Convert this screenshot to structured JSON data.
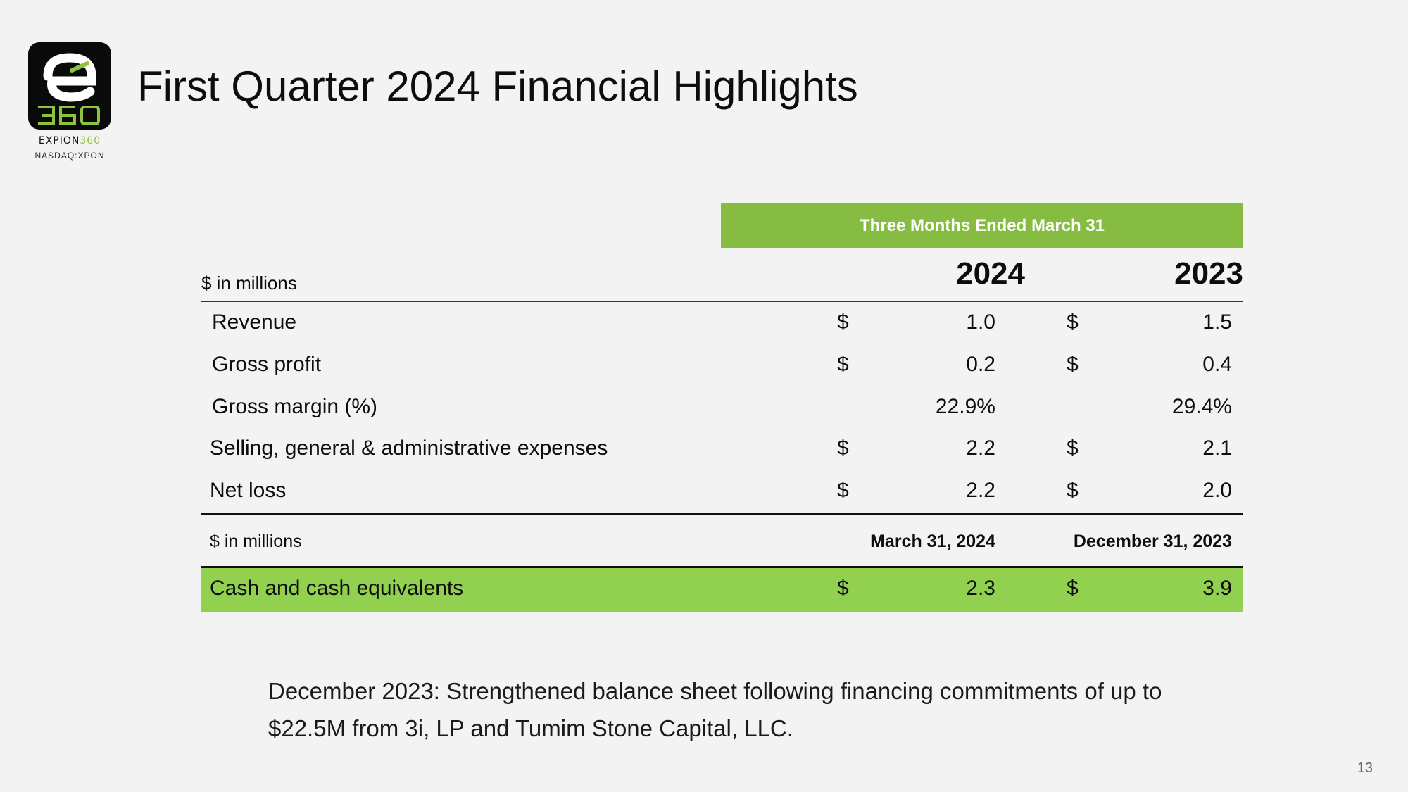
{
  "logo": {
    "brand_prefix": "EXPION",
    "brand_suffix": "360",
    "ticker": "NASDAQ:XPON",
    "colors": {
      "tile": "#0a0a0a",
      "accent": "#8cc43f"
    }
  },
  "title": "First Quarter 2024 Financial Highlights",
  "income_table": {
    "period_header": "Three Months Ended March 31",
    "units_label": "$ in millions",
    "years": [
      "2024",
      "2023"
    ],
    "rows": [
      {
        "label": "Revenue",
        "cur_2024": "$",
        "val_2024": "1.0",
        "cur_2023": "$",
        "val_2023": "1.5"
      },
      {
        "label": "Gross profit",
        "cur_2024": "$",
        "val_2024": "0.2",
        "cur_2023": "$",
        "val_2023": "0.4"
      },
      {
        "label": "Gross margin (%)",
        "cur_2024": "",
        "val_2024": "22.9%",
        "cur_2023": "",
        "val_2023": "29.4%"
      },
      {
        "label": "Selling, general & administrative expenses",
        "cur_2024": "$",
        "val_2024": "2.2",
        "cur_2023": "$",
        "val_2023": "2.1"
      },
      {
        "label": "Net loss",
        "cur_2024": "$",
        "val_2024": "2.2",
        "cur_2023": "$",
        "val_2023": "2.0"
      }
    ]
  },
  "balance_table": {
    "units_label": "$ in millions",
    "dates": [
      "March 31, 2024",
      "December 31, 2023"
    ],
    "cash_row": {
      "label": "Cash and cash equivalents",
      "cur_a": "$",
      "val_a": "2.3",
      "cur_b": "$",
      "val_b": "3.9"
    }
  },
  "note": {
    "lead": "December 2023:",
    "text": " Strengthened balance sheet following financing commitments of up to $22.5M from 3i, LP and Tumim Stone Capital, LLC."
  },
  "page_number": "13",
  "colors": {
    "header_green": "#86bc42",
    "highlight_green": "#92d050"
  }
}
